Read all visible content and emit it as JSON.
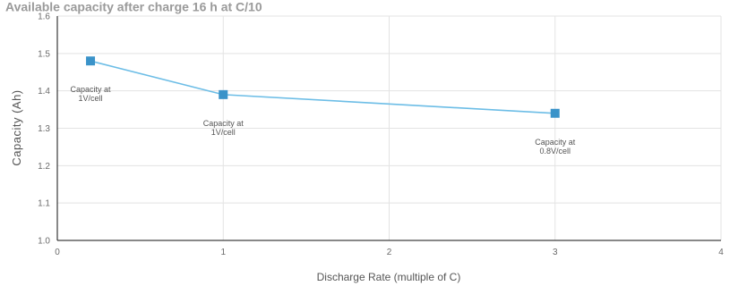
{
  "chart_data": {
    "type": "line",
    "title": "Available capacity after charge 16 h at C/10",
    "xlabel": "Discharge Rate (multiple of C)",
    "ylabel": "Capacity (Ah)",
    "xlim": [
      0,
      4
    ],
    "ylim": [
      1.0,
      1.6
    ],
    "x_ticks": [
      "0",
      "1",
      "2",
      "3",
      "4"
    ],
    "y_ticks": [
      "1.0",
      "1.1",
      "1.2",
      "1.3",
      "1.4",
      "1.5",
      "1.6"
    ],
    "grid": true,
    "legend": "none",
    "series": [
      {
        "x": [
          0.2,
          1,
          3
        ],
        "y": [
          1.48,
          1.39,
          1.34
        ]
      }
    ],
    "annotations": [
      {
        "line1": "Capacity at",
        "line2": "1V/cell"
      },
      {
        "line1": "Capacity at",
        "line2": "1V/cell"
      },
      {
        "line1": "Capacity at",
        "line2": "0.8V/cell"
      }
    ],
    "colors": {
      "line": "#6cbde6",
      "marker": "#3a93c9",
      "grid": "#e3e3e3",
      "axis": "#111111"
    }
  }
}
